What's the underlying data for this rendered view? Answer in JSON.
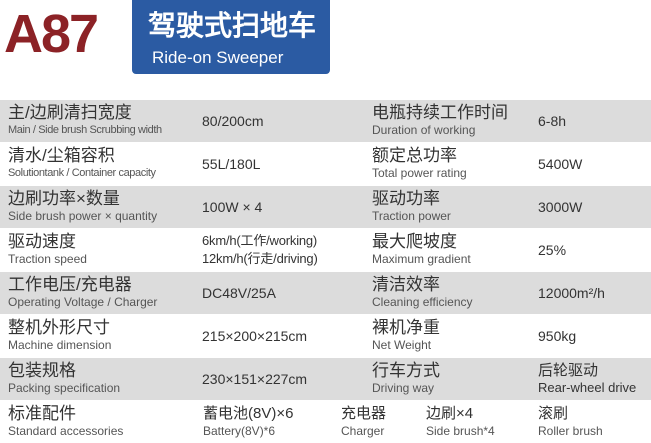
{
  "header": {
    "model": "A87",
    "title_zh": "驾驶式扫地车",
    "title_en": "Ride-on Sweeper",
    "model_color": "#8c2226",
    "banner_color": "#2b5ba3"
  },
  "rows": [
    {
      "l1_zh": "主/边刷清扫宽度",
      "l1_en": "Main / Side brush Scrubbing width",
      "v1": "80/200cm",
      "l2_zh": "电瓶持续工作时间",
      "l2_en": "Duration of working",
      "v2": "6-8h"
    },
    {
      "l1_zh": "清水/尘箱容积",
      "l1_en": "Solutiontank / Container capacity",
      "v1": "55L/180L",
      "l2_zh": "额定总功率",
      "l2_en": "Total power rating",
      "v2": "5400W"
    },
    {
      "l1_zh": "边刷功率×数量",
      "l1_en": "Side brush power × quantity",
      "v1": "100W × 4",
      "l2_zh": "驱动功率",
      "l2_en": "Traction power",
      "v2": "3000W"
    },
    {
      "l1_zh": "驱动速度",
      "l1_en": "Traction speed",
      "v1a": "6km/h(工作/working)",
      "v1b": "12km/h(行走/driving)",
      "l2_zh": "最大爬坡度",
      "l2_en": "Maximum gradient",
      "v2": "25%"
    },
    {
      "l1_zh": "工作电压/充电器",
      "l1_en": "Operating Voltage / Charger",
      "v1": "DC48V/25A",
      "l2_zh": "清洁效率",
      "l2_en": "Cleaning efficiency",
      "v2": "12000m²/h"
    },
    {
      "l1_zh": "整机外形尺寸",
      "l1_en": "Machine dimension",
      "v1": "215×200×215cm",
      "l2_zh": "裸机净重",
      "l2_en": "Net Weight",
      "v2": "950kg"
    },
    {
      "l1_zh": "包装规格",
      "l1_en": "Packing specification",
      "v1": "230×151×227cm",
      "l2_zh": "行车方式",
      "l2_en": "Driving way",
      "v2_zh": "后轮驱动",
      "v2_en": "Rear-wheel drive"
    }
  ],
  "accessories": {
    "label_zh": "标准配件",
    "label_en": "Standard accessories",
    "items": [
      {
        "zh": "蓄电池(8V)×6",
        "en": "Battery(8V)*6"
      },
      {
        "zh": "充电器",
        "en": "Charger"
      },
      {
        "zh": "边刷×4",
        "en": "Side brush*4"
      },
      {
        "zh": "滚刷",
        "en": "Roller brush"
      }
    ]
  }
}
